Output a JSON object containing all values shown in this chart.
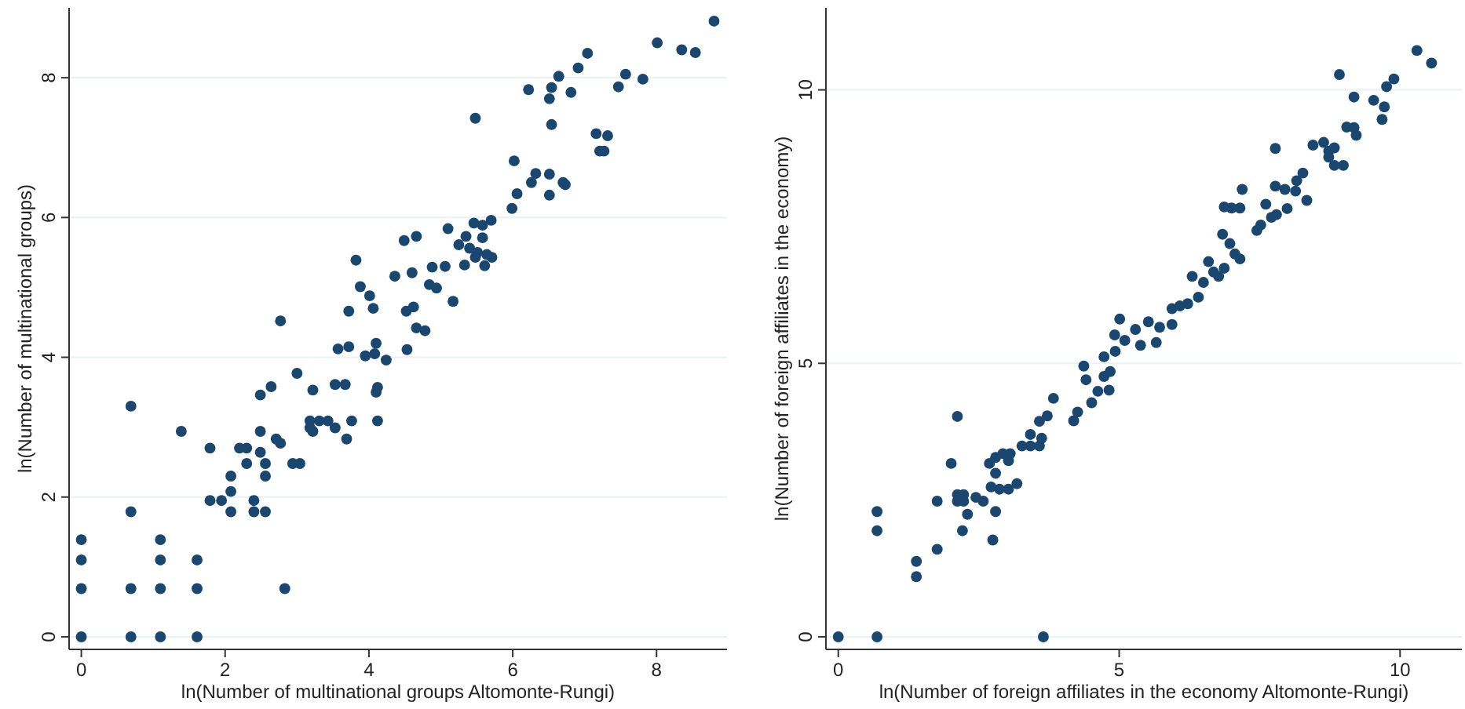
{
  "chart_data": [
    {
      "type": "scatter",
      "xlabel": "ln(Number of multinational groups Altomonte-Rungi)",
      "ylabel": "ln(Number of multinational groups)",
      "xlim": [
        -0.17,
        8.98
      ],
      "ylim": [
        -0.18,
        9.0
      ],
      "xticks": [
        0,
        2,
        4,
        6,
        8
      ],
      "yticks": [
        0,
        2,
        4,
        6,
        8
      ],
      "grid": "y",
      "marker": "circle",
      "series": [
        {
          "color": "#1a476f",
          "x": [
            0,
            0,
            0,
            0,
            0.69,
            0.69,
            0.69,
            0.69,
            1.1,
            1.1,
            1.1,
            1.1,
            1.61,
            1.61,
            1.61,
            1.39,
            2.83,
            1.79,
            1.79,
            1.95,
            2.08,
            2.08,
            2.08,
            2.2,
            2.3,
            2.3,
            2.49,
            2.49,
            2.49,
            2.4,
            2.4,
            2.56,
            2.56,
            2.56,
            2.64,
            2.71,
            2.77,
            3.0,
            2.94,
            3.04,
            3.22,
            3.18,
            3.31,
            3.43,
            3.18,
            3.22,
            3.53,
            3.67,
            3.53,
            3.69,
            3.76,
            3.57,
            3.72,
            3.95,
            4.08,
            4.1,
            4.12,
            4.12,
            4.24,
            4.53,
            2.77,
            4.1,
            3.72,
            3.82,
            3.88,
            4.01,
            4.06,
            4.36,
            4.49,
            4.66,
            4.6,
            4.52,
            4.62,
            4.66,
            4.78,
            4.84,
            4.94,
            4.88,
            5.06,
            5.1,
            5.17,
            5.25,
            5.33,
            5.35,
            5.4,
            5.51,
            5.48,
            5.61,
            5.64,
            5.71,
            5.46,
            5.58,
            5.7,
            5.58,
            5.48,
            5.99,
            6.06,
            6.02,
            6.22,
            6.26,
            6.32,
            6.51,
            6.54,
            6.64,
            6.54,
            6.51,
            6.51,
            6.7,
            6.73,
            6.81,
            6.91,
            7.04,
            7.16,
            7.32,
            7.21,
            7.27,
            7.47,
            7.57,
            7.81,
            8.01,
            8.35,
            8.54,
            8.8
          ],
          "values": [
            0,
            0.69,
            1.1,
            1.39,
            0,
            0.69,
            1.79,
            3.3,
            0,
            0.69,
            1.1,
            1.39,
            0,
            0.69,
            1.1,
            2.94,
            0.69,
            2.7,
            1.95,
            1.95,
            2.3,
            2.08,
            1.79,
            2.7,
            2.7,
            2.48,
            3.46,
            2.94,
            2.64,
            1.95,
            1.79,
            2.48,
            2.3,
            1.79,
            3.58,
            2.83,
            2.77,
            3.77,
            2.48,
            2.48,
            3.53,
            3.09,
            3.09,
            3.09,
            2.99,
            2.94,
            3.61,
            3.61,
            2.99,
            2.83,
            3.09,
            4.12,
            4.15,
            4.02,
            4.05,
            3.5,
            3.57,
            3.09,
            3.96,
            4.11,
            4.52,
            4.2,
            4.66,
            5.39,
            5.01,
            4.88,
            4.7,
            5.16,
            5.67,
            5.73,
            5.21,
            4.66,
            4.72,
            4.42,
            4.38,
            5.04,
            4.99,
            5.29,
            5.3,
            5.84,
            4.8,
            5.61,
            5.32,
            5.73,
            5.56,
            5.5,
            5.43,
            5.31,
            5.47,
            5.43,
            5.92,
            5.89,
            5.96,
            5.71,
            7.42,
            6.13,
            6.34,
            6.81,
            7.83,
            6.5,
            6.63,
            7.7,
            7.86,
            8.02,
            7.33,
            6.62,
            6.32,
            6.5,
            6.47,
            7.79,
            8.14,
            8.35,
            7.2,
            7.17,
            6.95,
            6.95,
            7.87,
            8.05,
            7.98,
            8.5,
            8.4,
            8.36,
            8.81
          ]
        }
      ]
    },
    {
      "type": "scatter",
      "xlabel": "ln(Number of foreign affiliates in the economy Altomonte-Rungi)",
      "ylabel": "ln(Number of foreign affiliates in the economy)",
      "xlim": [
        -0.22,
        11.1
      ],
      "ylim": [
        -0.23,
        11.5
      ],
      "xticks": [
        0,
        5,
        10
      ],
      "yticks": [
        0,
        5,
        10
      ],
      "grid": "y",
      "marker": "circle",
      "series": [
        {
          "color": "#1a476f",
          "x": [
            0,
            0.69,
            3.65,
            0.69,
            0.69,
            1.39,
            1.39,
            1.76,
            1.76,
            2.01,
            2.12,
            2.12,
            2.12,
            2.23,
            2.23,
            2.3,
            2.21,
            2.45,
            2.58,
            2.75,
            2.8,
            2.8,
            2.69,
            2.8,
            2.93,
            3.06,
            3.03,
            2.72,
            2.87,
            3.03,
            3.18,
            3.27,
            3.42,
            3.42,
            3.58,
            3.62,
            3.58,
            3.72,
            3.83,
            4.19,
            4.26,
            4.37,
            4.41,
            4.51,
            4.62,
            4.73,
            4.82,
            4.84,
            4.73,
            4.93,
            5.01,
            4.92,
            5.1,
            5.29,
            5.38,
            5.52,
            5.66,
            5.72,
            5.94,
            5.94,
            6.08,
            6.22,
            6.41,
            6.3,
            6.5,
            6.68,
            6.77,
            6.87,
            6.59,
            6.84,
            6.97,
            7.06,
            7.15,
            6.87,
            7.0,
            7.15,
            7.19,
            7.45,
            7.52,
            7.61,
            7.71,
            7.8,
            7.78,
            7.78,
            7.95,
            7.99,
            8.14,
            8.16,
            8.27,
            8.34,
            8.45,
            8.64,
            8.73,
            8.83,
            8.73,
            8.83,
            8.99,
            8.92,
            9.05,
            9.18,
            9.22,
            9.18,
            9.53,
            9.72,
            9.68,
            9.76,
            9.89,
            10.3,
            10.56
          ],
          "values": [
            0,
            0,
            0,
            2.29,
            1.94,
            1.38,
            1.1,
            1.6,
            2.48,
            3.17,
            4.03,
            2.6,
            2.48,
            2.6,
            2.48,
            2.24,
            1.94,
            2.55,
            2.48,
            1.77,
            2.29,
            2.99,
            3.17,
            3.28,
            3.35,
            3.35,
            3.22,
            2.74,
            2.7,
            2.7,
            2.8,
            3.49,
            3.49,
            3.7,
            3.49,
            3.63,
            3.94,
            4.04,
            4.36,
            3.95,
            4.11,
            4.95,
            4.7,
            4.28,
            4.49,
            4.76,
            4.51,
            4.85,
            5.12,
            5.22,
            5.81,
            5.52,
            5.42,
            5.62,
            5.33,
            5.76,
            5.38,
            5.66,
            6.0,
            5.71,
            6.05,
            6.09,
            6.21,
            6.59,
            6.48,
            6.67,
            6.59,
            6.74,
            6.86,
            7.36,
            7.19,
            7.0,
            6.91,
            7.86,
            7.84,
            7.84,
            8.18,
            7.43,
            7.53,
            7.91,
            7.67,
            7.72,
            8.93,
            8.24,
            8.18,
            7.83,
            8.15,
            8.34,
            8.48,
            7.98,
            8.99,
            9.04,
            8.88,
            8.94,
            8.77,
            8.62,
            8.62,
            10.28,
            9.32,
            9.31,
            9.17,
            9.87,
            9.81,
            9.69,
            9.46,
            10.06,
            10.2,
            10.72,
            10.49
          ]
        }
      ]
    }
  ]
}
